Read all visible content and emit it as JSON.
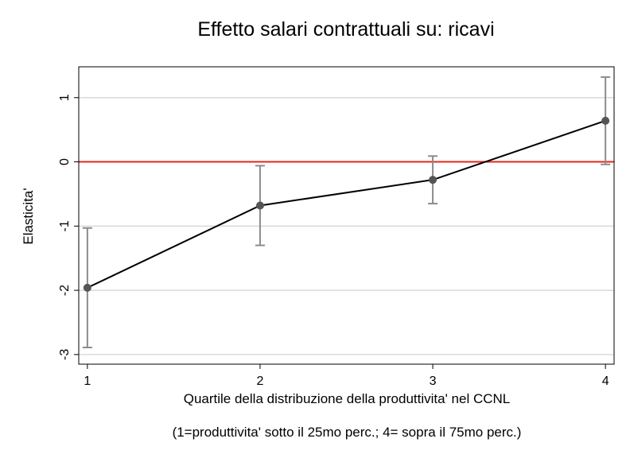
{
  "chart_data": {
    "type": "line",
    "title": "Effetto salari contrattuali su: ricavi",
    "xlabel": "Quartile della distribuzione della produttivita' nel CCNL",
    "note": "(1=produttivita' sotto il 25mo perc.;  4= sopra il 75mo perc.)",
    "ylabel": "Elasticita'",
    "x": [
      1,
      2,
      3,
      4
    ],
    "x_ticks": [
      1,
      2,
      3,
      4
    ],
    "xlim": [
      0.95,
      4.05
    ],
    "y_ticks": [
      1,
      0,
      -1,
      -2,
      -3
    ],
    "ylim": [
      -3.15,
      1.48
    ],
    "grid": "horizontal",
    "reference_line": {
      "y": 0,
      "color": "#e8231a"
    },
    "series": [
      {
        "values": [
          -1.96,
          -0.68,
          -0.28,
          0.64
        ],
        "ci_low": [
          -2.89,
          -1.3,
          -0.65,
          -0.04
        ],
        "ci_high": [
          -1.03,
          -0.06,
          0.09,
          1.32
        ],
        "color": "#000000",
        "marker_color": "#555555",
        "errorbar_color": "#8c8c8c"
      }
    ]
  }
}
